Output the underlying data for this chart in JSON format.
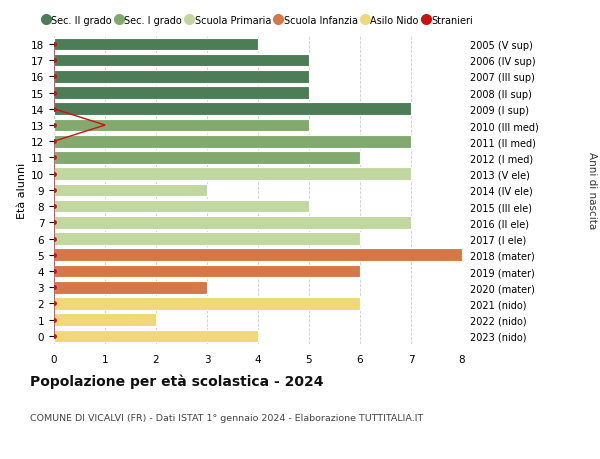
{
  "ages": [
    18,
    17,
    16,
    15,
    14,
    13,
    12,
    11,
    10,
    9,
    8,
    7,
    6,
    5,
    4,
    3,
    2,
    1,
    0
  ],
  "years": [
    "2005 (V sup)",
    "2006 (IV sup)",
    "2007 (III sup)",
    "2008 (II sup)",
    "2009 (I sup)",
    "2010 (III med)",
    "2011 (II med)",
    "2012 (I med)",
    "2013 (V ele)",
    "2014 (IV ele)",
    "2015 (III ele)",
    "2016 (II ele)",
    "2017 (I ele)",
    "2018 (mater)",
    "2019 (mater)",
    "2020 (mater)",
    "2021 (nido)",
    "2022 (nido)",
    "2023 (nido)"
  ],
  "values": [
    4,
    5,
    5,
    5,
    7,
    5,
    7,
    6,
    7,
    3,
    5,
    7,
    6,
    8,
    6,
    3,
    6,
    2,
    4
  ],
  "stranieri": [
    0,
    0,
    0,
    0,
    0,
    1,
    0,
    0,
    0,
    0,
    0,
    0,
    0,
    0,
    0,
    0,
    0,
    0,
    0
  ],
  "bar_colors": [
    "#4d7d56",
    "#4d7d56",
    "#4d7d56",
    "#4d7d56",
    "#4d7d56",
    "#82aa6e",
    "#82aa6e",
    "#82aa6e",
    "#c0d8a0",
    "#c0d8a0",
    "#c0d8a0",
    "#c0d8a0",
    "#c0d8a0",
    "#d4784a",
    "#d4784a",
    "#d4784a",
    "#f0d878",
    "#f0d878",
    "#f0d878"
  ],
  "legend_labels": [
    "Sec. II grado",
    "Sec. I grado",
    "Scuola Primaria",
    "Scuola Infanzia",
    "Asilo Nido",
    "Stranieri"
  ],
  "legend_colors": [
    "#4d7d56",
    "#82aa6e",
    "#c0d8a0",
    "#d4784a",
    "#f0d878",
    "#cc1111"
  ],
  "title": "Popolazione per età scolastica - 2024",
  "subtitle": "COMUNE DI VICALVI (FR) - Dati ISTAT 1° gennaio 2024 - Elaborazione TUTTITALIA.IT",
  "ylabel_left": "Età alunni",
  "ylabel_right": "Anni di nascita",
  "xlim": [
    0,
    8
  ],
  "xticks": [
    0,
    1,
    2,
    3,
    4,
    5,
    6,
    7,
    8
  ],
  "ylim": [
    -0.5,
    18.5
  ],
  "background_color": "#ffffff",
  "grid_color": "#cccccc",
  "stranieri_color": "#cc1111",
  "bar_height": 0.78
}
